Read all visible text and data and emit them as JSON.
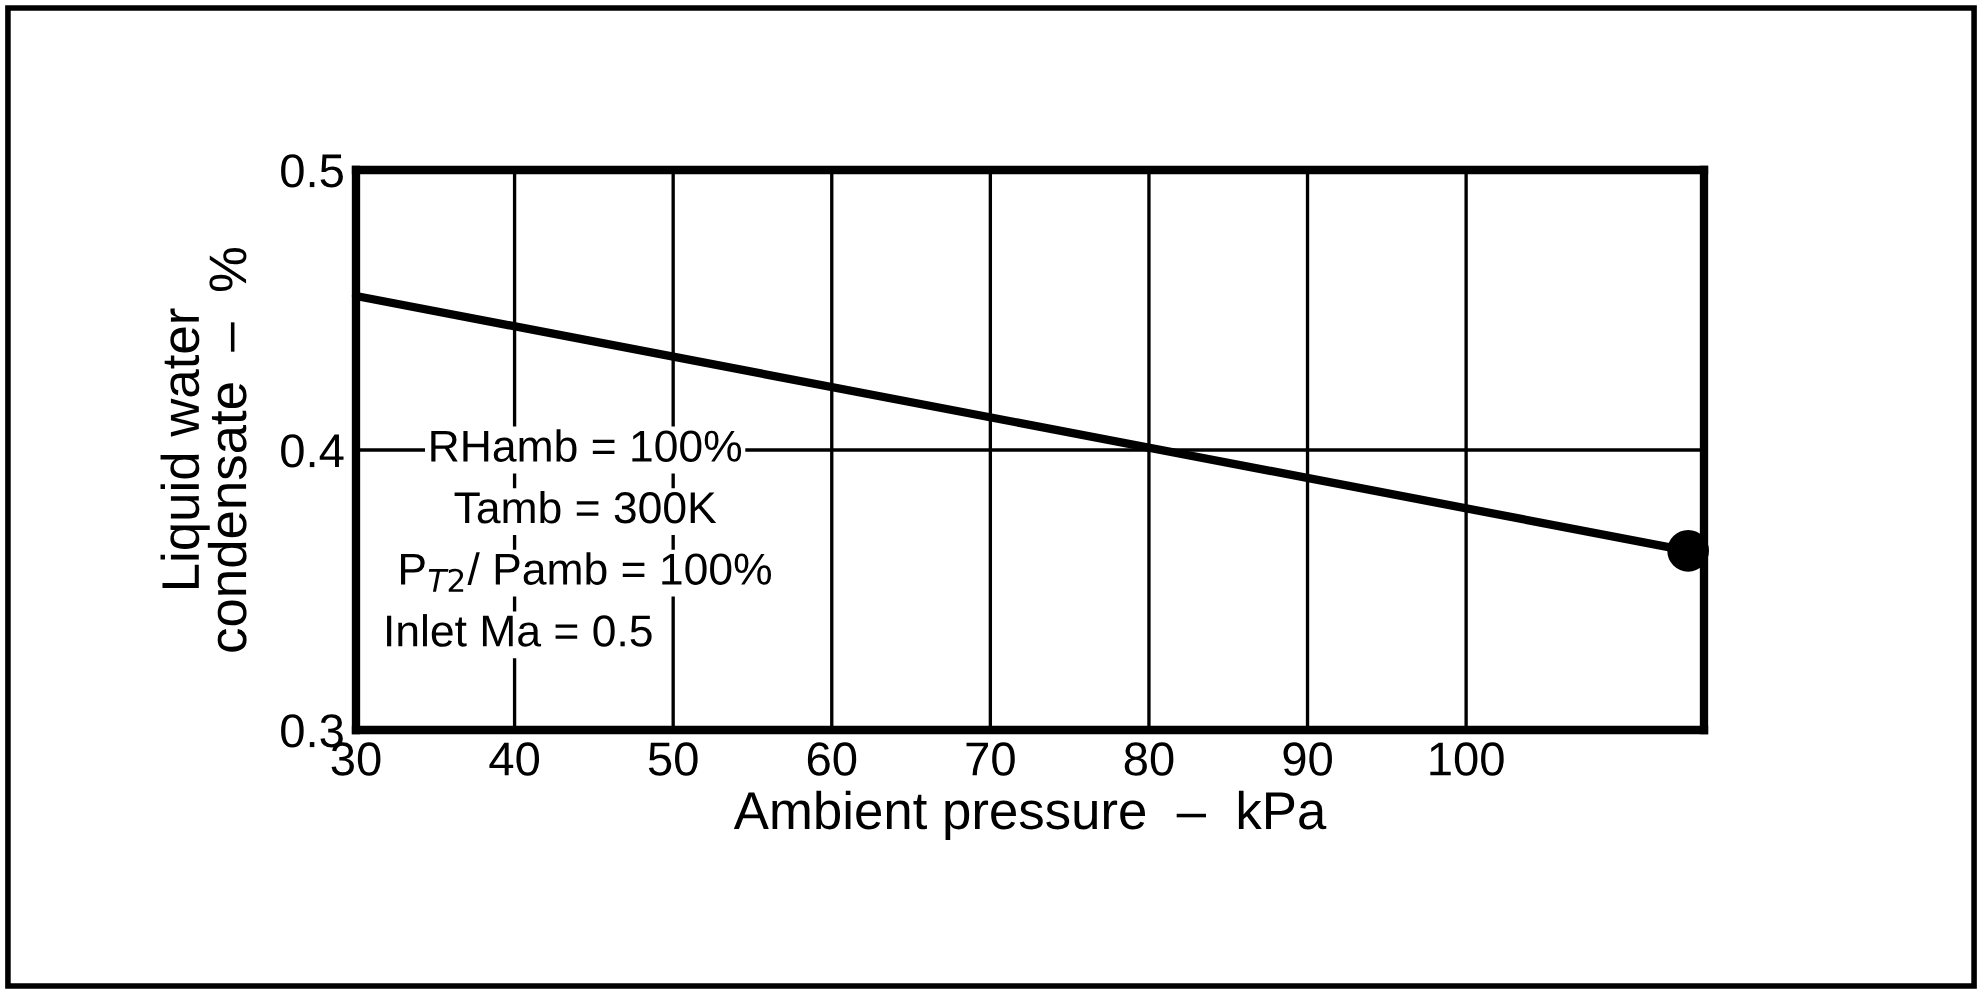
{
  "chart_data": {
    "type": "line",
    "xlabel": "Ambient pressure  –  kPa",
    "ylabel": "Liquid water\ncondensate  –  %",
    "x": [
      30,
      114
    ],
    "series": [
      {
        "color": "#000000",
        "values": [
          0.455,
          0.364
        ]
      }
    ],
    "xlim": [
      30,
      115
    ],
    "xticks": [
      30,
      40,
      50,
      60,
      70,
      80,
      90,
      100
    ],
    "ylim": [
      0.3,
      0.5
    ],
    "yticks": [
      0.3,
      0.4,
      0.5
    ],
    "grid": true,
    "legend": false,
    "annotations": [
      "RHamb = 100%",
      "Tamb = 300K",
      "P$_{T2}$/ Pamb = 100%",
      "Inlet Ma = 0.5"
    ]
  }
}
